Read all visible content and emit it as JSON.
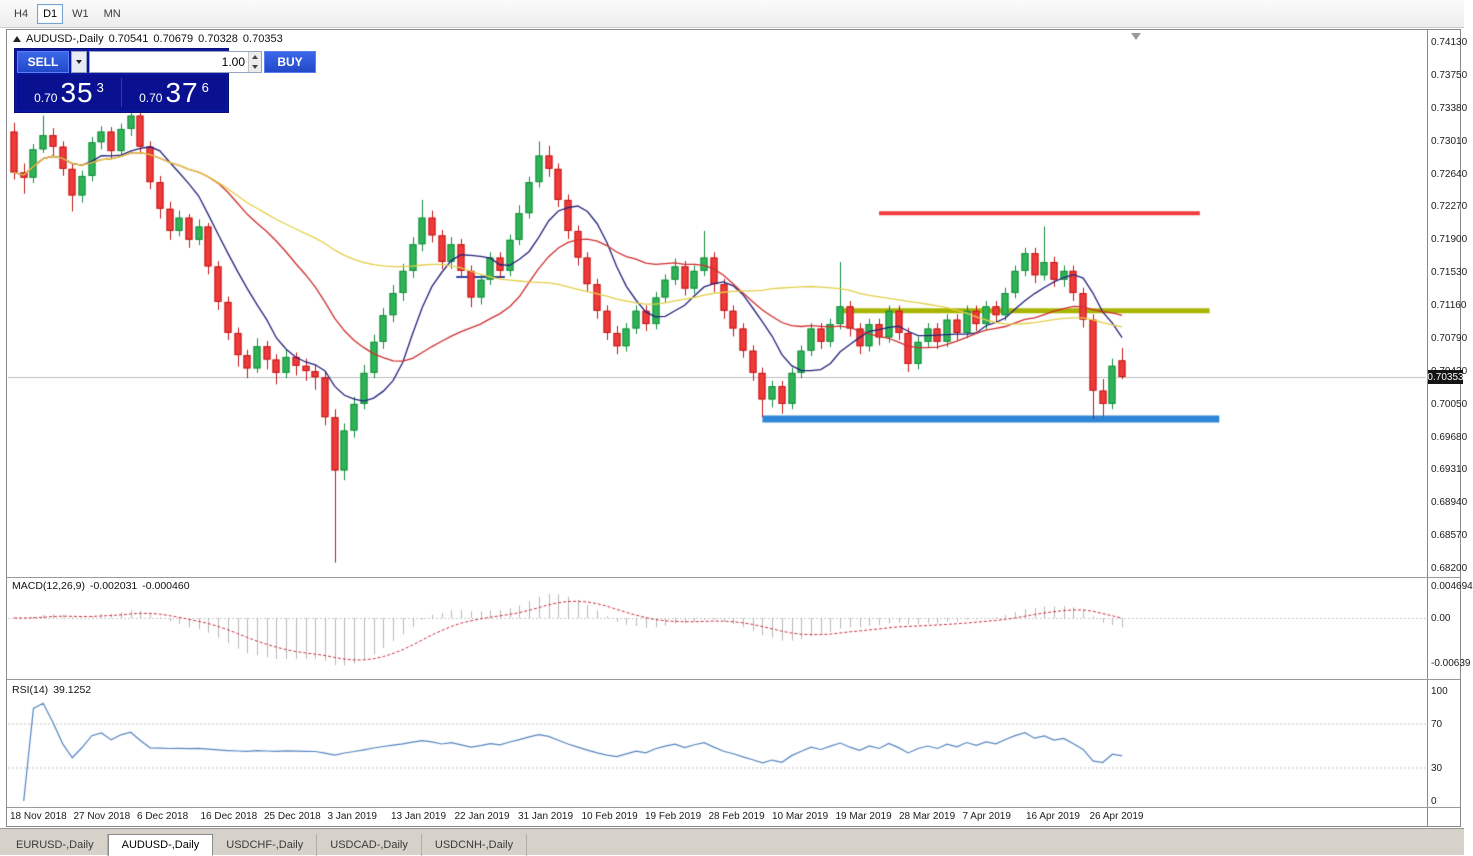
{
  "toolbar": {
    "timeframes": [
      "H4",
      "D1",
      "W1",
      "MN"
    ],
    "active": "D1"
  },
  "chart_header": {
    "title": "AUDUSD-,Daily",
    "open": "0.70541",
    "high": "0.70679",
    "low": "0.70328",
    "close": "0.70353"
  },
  "trade_panel": {
    "sell_label": "SELL",
    "buy_label": "BUY",
    "volume": "1.00",
    "sell_price": {
      "small": "0.70",
      "big": "35",
      "sup": "3"
    },
    "buy_price": {
      "small": "0.70",
      "big": "37",
      "sup": "6"
    }
  },
  "price_axis": {
    "labels": [
      "0.74130",
      "0.73750",
      "0.73380",
      "0.73010",
      "0.72640",
      "0.72270",
      "0.71900",
      "0.71530",
      "0.71160",
      "0.70790",
      "0.70420",
      "0.70050",
      "0.69680",
      "0.69310",
      "0.68940",
      "0.68570",
      "0.68200"
    ],
    "current": "0.70353"
  },
  "indicators": {
    "macd": {
      "label": "MACD(12,26,9)",
      "main_value": "-0.002031",
      "signal_value": "-0.000460",
      "axis": [
        "0.004694",
        "0.00",
        "-0.00639"
      ]
    },
    "rsi": {
      "label": "RSI(14)",
      "value": "39.1252",
      "axis": [
        "100",
        "70",
        "30",
        "0"
      ]
    }
  },
  "date_axis": [
    "18 Nov 2018",
    "27 Nov 2018",
    "6 Dec 2018",
    "16 Dec 2018",
    "25 Dec 2018",
    "3 Jan 2019",
    "13 Jan 2019",
    "22 Jan 2019",
    "31 Jan 2019",
    "10 Feb 2019",
    "19 Feb 2019",
    "28 Feb 2019",
    "10 Mar 2019",
    "19 Mar 2019",
    "28 Mar 2019",
    "7 Apr 2019",
    "16 Apr 2019",
    "26 Apr 2019"
  ],
  "tabs": {
    "items": [
      "EURUSD-,Daily",
      "AUDUSD-,Daily",
      "USDCHF-,Daily",
      "USDCAD-,Daily",
      "USDCNH-,Daily"
    ],
    "active_index": 1
  },
  "chart_data": {
    "type": "candlestick",
    "title": "AUDUSD-,Daily",
    "price_range": [
      0.682,
      0.7413
    ],
    "bid": 0.70353,
    "candles": [
      [
        0.7312,
        0.7322,
        0.7258,
        0.7266
      ],
      [
        0.7266,
        0.7276,
        0.7242,
        0.726
      ],
      [
        0.726,
        0.7298,
        0.7254,
        0.7292
      ],
      [
        0.7292,
        0.733,
        0.7288,
        0.7308
      ],
      [
        0.7308,
        0.7316,
        0.7284,
        0.7295
      ],
      [
        0.7295,
        0.7301,
        0.7262,
        0.727
      ],
      [
        0.727,
        0.7276,
        0.7222,
        0.724
      ],
      [
        0.724,
        0.7268,
        0.7232,
        0.7262
      ],
      [
        0.7262,
        0.7306,
        0.7256,
        0.73
      ],
      [
        0.73,
        0.7318,
        0.7292,
        0.7312
      ],
      [
        0.7312,
        0.7317,
        0.7281,
        0.729
      ],
      [
        0.729,
        0.7321,
        0.7285,
        0.7315
      ],
      [
        0.7315,
        0.734,
        0.7307,
        0.733
      ],
      [
        0.733,
        0.7336,
        0.7287,
        0.7295
      ],
      [
        0.7295,
        0.7301,
        0.7247,
        0.7255
      ],
      [
        0.7255,
        0.7262,
        0.7214,
        0.7225
      ],
      [
        0.7225,
        0.7233,
        0.719,
        0.72
      ],
      [
        0.72,
        0.7223,
        0.7194,
        0.7215
      ],
      [
        0.7215,
        0.7219,
        0.7181,
        0.719
      ],
      [
        0.719,
        0.7213,
        0.7184,
        0.7205
      ],
      [
        0.7205,
        0.7209,
        0.7151,
        0.716
      ],
      [
        0.716,
        0.7166,
        0.7111,
        0.712
      ],
      [
        0.712,
        0.7126,
        0.7077,
        0.7085
      ],
      [
        0.7085,
        0.7091,
        0.7047,
        0.706
      ],
      [
        0.706,
        0.7066,
        0.7034,
        0.7045
      ],
      [
        0.7045,
        0.7079,
        0.704,
        0.707
      ],
      [
        0.707,
        0.7076,
        0.7044,
        0.7055
      ],
      [
        0.7055,
        0.7061,
        0.7027,
        0.704
      ],
      [
        0.704,
        0.7066,
        0.7034,
        0.7058
      ],
      [
        0.7058,
        0.7063,
        0.7037,
        0.7048
      ],
      [
        0.7048,
        0.7056,
        0.7031,
        0.7042
      ],
      [
        0.7042,
        0.7049,
        0.7021,
        0.7035
      ],
      [
        0.7035,
        0.7041,
        0.6981,
        0.699
      ],
      [
        0.699,
        0.6999,
        0.6826,
        0.693
      ],
      [
        0.693,
        0.6983,
        0.6919,
        0.6975
      ],
      [
        0.6975,
        0.7013,
        0.6967,
        0.7005
      ],
      [
        0.7005,
        0.7049,
        0.6999,
        0.704
      ],
      [
        0.704,
        0.7083,
        0.7034,
        0.7075
      ],
      [
        0.7075,
        0.7113,
        0.7067,
        0.7105
      ],
      [
        0.7105,
        0.7139,
        0.7097,
        0.713
      ],
      [
        0.713,
        0.7163,
        0.7121,
        0.7155
      ],
      [
        0.7155,
        0.7193,
        0.7147,
        0.7185
      ],
      [
        0.7185,
        0.7235,
        0.7177,
        0.7215
      ],
      [
        0.7215,
        0.7223,
        0.7187,
        0.7195
      ],
      [
        0.7195,
        0.7201,
        0.7157,
        0.7165
      ],
      [
        0.7165,
        0.7193,
        0.7157,
        0.7185
      ],
      [
        0.7185,
        0.7191,
        0.7147,
        0.7155
      ],
      [
        0.7155,
        0.7161,
        0.7114,
        0.7125
      ],
      [
        0.7125,
        0.7151,
        0.7117,
        0.7145
      ],
      [
        0.7145,
        0.7176,
        0.7139,
        0.717
      ],
      [
        0.717,
        0.7176,
        0.7147,
        0.7155
      ],
      [
        0.7155,
        0.7196,
        0.7149,
        0.719
      ],
      [
        0.719,
        0.7229,
        0.7184,
        0.722
      ],
      [
        0.722,
        0.7261,
        0.7214,
        0.7255
      ],
      [
        0.7255,
        0.7301,
        0.7249,
        0.7285
      ],
      [
        0.7285,
        0.7296,
        0.7261,
        0.727
      ],
      [
        0.727,
        0.7276,
        0.7227,
        0.7235
      ],
      [
        0.7235,
        0.7241,
        0.7191,
        0.72
      ],
      [
        0.72,
        0.7206,
        0.7161,
        0.717
      ],
      [
        0.717,
        0.7176,
        0.7131,
        0.714
      ],
      [
        0.714,
        0.7146,
        0.7101,
        0.711
      ],
      [
        0.711,
        0.7116,
        0.7077,
        0.7085
      ],
      [
        0.7085,
        0.7093,
        0.7061,
        0.707
      ],
      [
        0.707,
        0.7096,
        0.7064,
        0.709
      ],
      [
        0.709,
        0.7116,
        0.7084,
        0.711
      ],
      [
        0.711,
        0.7116,
        0.7087,
        0.7095
      ],
      [
        0.7095,
        0.7131,
        0.7089,
        0.7125
      ],
      [
        0.7125,
        0.7151,
        0.7119,
        0.7145
      ],
      [
        0.7145,
        0.7169,
        0.7139,
        0.716
      ],
      [
        0.716,
        0.7166,
        0.7127,
        0.7135
      ],
      [
        0.7135,
        0.7161,
        0.7129,
        0.7155
      ],
      [
        0.7155,
        0.72,
        0.7149,
        0.717
      ],
      [
        0.717,
        0.7176,
        0.7131,
        0.714
      ],
      [
        0.714,
        0.7146,
        0.7101,
        0.711
      ],
      [
        0.711,
        0.7116,
        0.7081,
        0.709
      ],
      [
        0.709,
        0.7096,
        0.7057,
        0.7065
      ],
      [
        0.7065,
        0.7071,
        0.7031,
        0.704
      ],
      [
        0.704,
        0.7046,
        0.699,
        0.701
      ],
      [
        0.701,
        0.7031,
        0.7001,
        0.7025
      ],
      [
        0.7025,
        0.7031,
        0.6994,
        0.7005
      ],
      [
        0.7005,
        0.7046,
        0.6999,
        0.704
      ],
      [
        0.704,
        0.7071,
        0.7034,
        0.7065
      ],
      [
        0.7065,
        0.7096,
        0.7059,
        0.709
      ],
      [
        0.709,
        0.7096,
        0.7067,
        0.7075
      ],
      [
        0.7075,
        0.7101,
        0.7069,
        0.7095
      ],
      [
        0.7095,
        0.7165,
        0.7089,
        0.7115
      ],
      [
        0.7115,
        0.7121,
        0.7081,
        0.709
      ],
      [
        0.709,
        0.7096,
        0.7061,
        0.707
      ],
      [
        0.707,
        0.7101,
        0.7064,
        0.7095
      ],
      [
        0.7095,
        0.7101,
        0.7071,
        0.708
      ],
      [
        0.708,
        0.7116,
        0.7074,
        0.711
      ],
      [
        0.711,
        0.7116,
        0.7077,
        0.7085
      ],
      [
        0.7085,
        0.7091,
        0.7041,
        0.705
      ],
      [
        0.705,
        0.7081,
        0.7044,
        0.7075
      ],
      [
        0.7075,
        0.7096,
        0.7069,
        0.709
      ],
      [
        0.709,
        0.7096,
        0.7067,
        0.7075
      ],
      [
        0.7075,
        0.7106,
        0.7069,
        0.71
      ],
      [
        0.71,
        0.7106,
        0.7077,
        0.7085
      ],
      [
        0.7085,
        0.7116,
        0.7079,
        0.711
      ],
      [
        0.711,
        0.7116,
        0.7087,
        0.7095
      ],
      [
        0.7095,
        0.7121,
        0.7089,
        0.7115
      ],
      [
        0.7115,
        0.7121,
        0.7097,
        0.7105
      ],
      [
        0.7105,
        0.7136,
        0.7099,
        0.713
      ],
      [
        0.713,
        0.7161,
        0.7124,
        0.7155
      ],
      [
        0.7155,
        0.7181,
        0.7149,
        0.7175
      ],
      [
        0.7175,
        0.7181,
        0.7141,
        0.715
      ],
      [
        0.715,
        0.7205,
        0.7144,
        0.7165
      ],
      [
        0.7165,
        0.7171,
        0.7137,
        0.7145
      ],
      [
        0.7145,
        0.7161,
        0.7137,
        0.7155
      ],
      [
        0.7155,
        0.7161,
        0.7121,
        0.713
      ],
      [
        0.713,
        0.7136,
        0.7091,
        0.71
      ],
      [
        0.71,
        0.7106,
        0.6988,
        0.702
      ],
      [
        0.702,
        0.7033,
        0.6991,
        0.7005
      ],
      [
        0.7005,
        0.7056,
        0.6999,
        0.7048
      ],
      [
        0.70541,
        0.70679,
        0.70328,
        0.70353
      ]
    ],
    "moving_averages": [
      {
        "period": 8,
        "color": "#23237d"
      },
      {
        "period": 20,
        "color": "#cf2f2f"
      },
      {
        "period": 45,
        "color": "#e3cf4a"
      }
    ],
    "hlines": [
      {
        "price": 0.722,
        "from_bar": 89,
        "to_bar": 122,
        "color": "#ef3c3c",
        "width": 4
      },
      {
        "price": 0.711,
        "from_bar": 85,
        "to_bar": 123,
        "color": "#a8b400",
        "width": 5
      },
      {
        "price": 0.6988,
        "from_bar": 77,
        "to_bar": 124,
        "color": "#2e86d8",
        "width": 7
      },
      {
        "price": 0.7148,
        "from_bar": 45.5,
        "to_bar": 50.5,
        "color": "#2244aa",
        "width": 2
      }
    ],
    "macd": {
      "fast": 12,
      "slow": 26,
      "signal": 9,
      "range": [
        -0.00639,
        0.004694
      ]
    },
    "rsi": {
      "period": 14,
      "levels": [
        30,
        70
      ],
      "range": [
        0,
        100
      ]
    },
    "colors": {
      "bull": "#2eb457",
      "bull_edge": "#168c3c",
      "bear": "#f03a3a",
      "bear_edge": "#c01818",
      "macd_hist": "#b8b8b8",
      "macd_signal": "#c9303f",
      "rsi": "#5585c0",
      "bid_line": "#bdbdbd"
    }
  }
}
